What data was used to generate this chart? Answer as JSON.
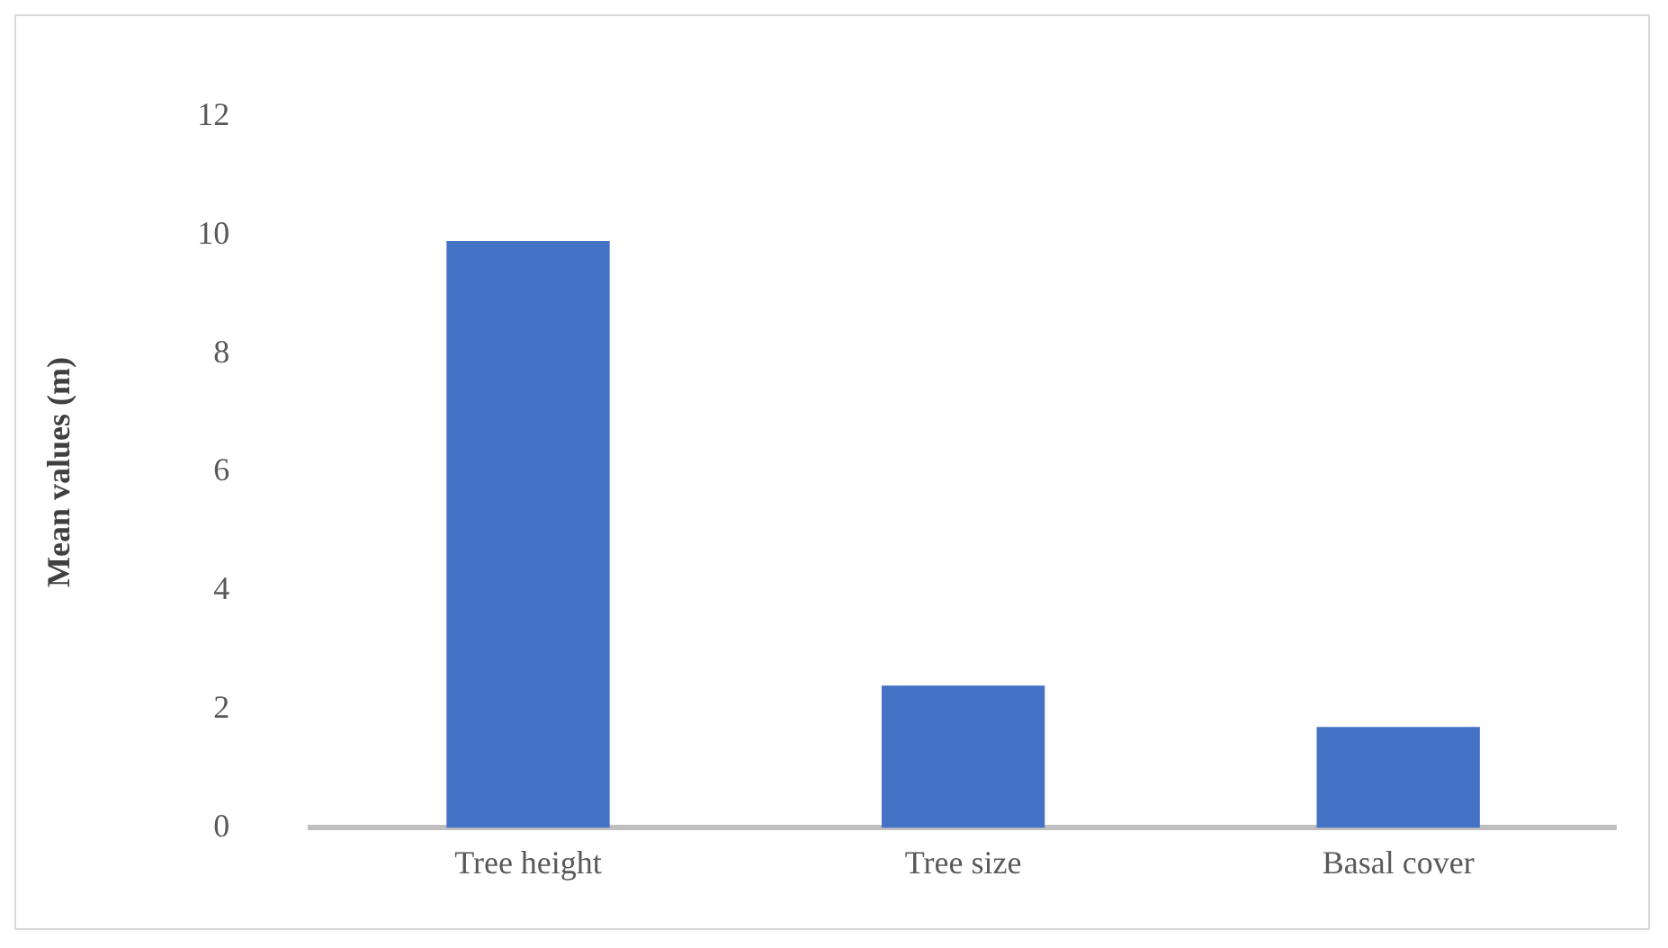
{
  "chart_data": {
    "type": "bar",
    "ylabel": "Mean values (m)",
    "categories": [
      "Tree height",
      "Tree size",
      "Basal cover"
    ],
    "values": [
      9.9,
      2.4,
      1.7
    ],
    "color": "#4472c4",
    "ylim": [
      0,
      12
    ],
    "yticks": [
      0,
      2,
      4,
      6,
      8,
      10,
      12
    ],
    "grid": false,
    "legend": false
  }
}
